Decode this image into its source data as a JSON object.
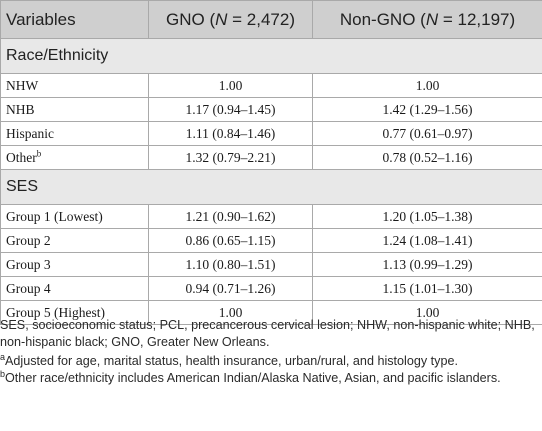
{
  "table": {
    "header": {
      "variables": "Variables",
      "gno_prefix": "GNO (",
      "gno_n": "N",
      "gno_suffix": " = 2,472)",
      "nongno_prefix": "Non-GNO (",
      "nongno_n": "N",
      "nongno_suffix": " = 12,197)"
    },
    "sections": [
      {
        "title": "Race/Ethnicity",
        "rows": [
          {
            "label": "NHW",
            "sup": "",
            "gno": "1.00",
            "nongno": "1.00"
          },
          {
            "label": "NHB",
            "sup": "",
            "gno": "1.17 (0.94–1.45)",
            "nongno": "1.42 (1.29–1.56)"
          },
          {
            "label": "Hispanic",
            "sup": "",
            "gno": "1.11 (0.84–1.46)",
            "nongno": "0.77 (0.61–0.97)"
          },
          {
            "label": "Other",
            "sup": "b",
            "gno": "1.32 (0.79–2.21)",
            "nongno": "0.78 (0.52–1.16)"
          }
        ]
      },
      {
        "title": "SES",
        "rows": [
          {
            "label": "Group 1 (Lowest)",
            "sup": "",
            "gno": "1.21 (0.90–1.62)",
            "nongno": "1.20 (1.05–1.38)"
          },
          {
            "label": "Group 2",
            "sup": "",
            "gno": "0.86 (0.65–1.15)",
            "nongno": "1.24 (1.08–1.41)"
          },
          {
            "label": "Group 3",
            "sup": "",
            "gno": "1.10 (0.80–1.51)",
            "nongno": "1.13 (0.99–1.29)"
          },
          {
            "label": "Group 4",
            "sup": "",
            "gno": "0.94 (0.71–1.26)",
            "nongno": "1.15 (1.01–1.30)"
          },
          {
            "label": "Group 5 (Highest)",
            "sup": "",
            "gno": "1.00",
            "nongno": "1.00"
          }
        ]
      }
    ]
  },
  "footnotes": {
    "abbrev": "SES, socioeconomic status; PCL, precancerous cervical lesion; NHW, non-hispanic white; NHB, non-hispanic black; GNO, Greater New Orleans.",
    "a_mark": "a",
    "a_text": "Adjusted for age, marital status, health insurance, urban/rural, and histology type.",
    "b_mark": "b",
    "b_text": "Other race/ethnicity includes American Indian/Alaska Native, Asian, and pacific islanders."
  }
}
